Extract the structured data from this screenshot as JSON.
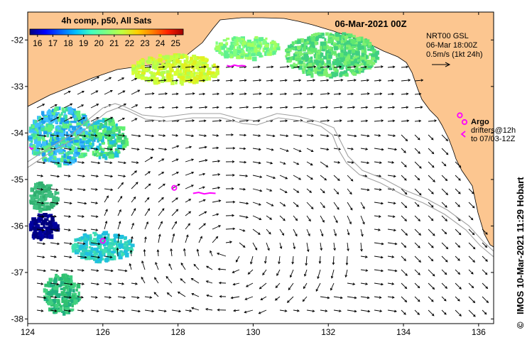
{
  "header": {
    "colorbar_title": "4h comp, p50, All Sats",
    "date_title": "06-Mar-2021 00Z"
  },
  "colorbar": {
    "ticks": [
      "16",
      "17",
      "18",
      "19",
      "20",
      "21",
      "22",
      "23",
      "24",
      "25"
    ],
    "min": 15.5,
    "max": 25.5,
    "colors": [
      "#00007f",
      "#0000ff",
      "#0060ff",
      "#00c0ff",
      "#40ffc0",
      "#80ff80",
      "#c0ff40",
      "#ffd000",
      "#ff8000",
      "#ff2000",
      "#a00000"
    ]
  },
  "info_box": {
    "line1": "NRT00 GSL",
    "line2": "06-Mar 18:00Z",
    "line3": "0.5m/s (1kt 24h)"
  },
  "legend": {
    "argo_label": "Argo",
    "drifters_line1": "drifters@12h",
    "drifters_line2": "to 07/03-12Z"
  },
  "credit": "IMOS 10-Mar-2021 11:29 Hobart",
  "copyright_symbol": "©",
  "axes": {
    "x_ticks": [
      "124",
      "126",
      "128",
      "130",
      "132",
      "134",
      "136"
    ],
    "y_ticks": [
      "-32",
      "-33",
      "-34",
      "-35",
      "-36",
      "-37",
      "-38"
    ],
    "lon_range": [
      124,
      136.4
    ],
    "lat_range": [
      -38.1,
      -31.4
    ]
  },
  "colors": {
    "land": "#fcc690",
    "bathymetry": "#a0a0a0",
    "argo_marker": "#ff00ff"
  },
  "argo_floats": [
    {
      "lon": 127.9,
      "lat": -35.18
    },
    {
      "lon": 126.0,
      "lat": -36.32
    },
    {
      "lon": 135.5,
      "lat": -33.62
    }
  ],
  "drifter_tracks": [
    {
      "lon": [
        129.3,
        129.4,
        129.5,
        129.6,
        129.7,
        129.8
      ],
      "lat": [
        -32.55,
        -32.57,
        -32.54,
        -32.56,
        -32.55,
        -32.56
      ]
    },
    {
      "lon": [
        128.4,
        128.55,
        128.7,
        128.85,
        129.0
      ],
      "lat": [
        -35.3,
        -35.28,
        -35.31,
        -35.29,
        -35.3
      ]
    },
    {
      "lon": [
        124.05,
        124.1,
        124.15
      ],
      "lat": [
        -34.3,
        -34.35,
        -34.32
      ]
    }
  ]
}
